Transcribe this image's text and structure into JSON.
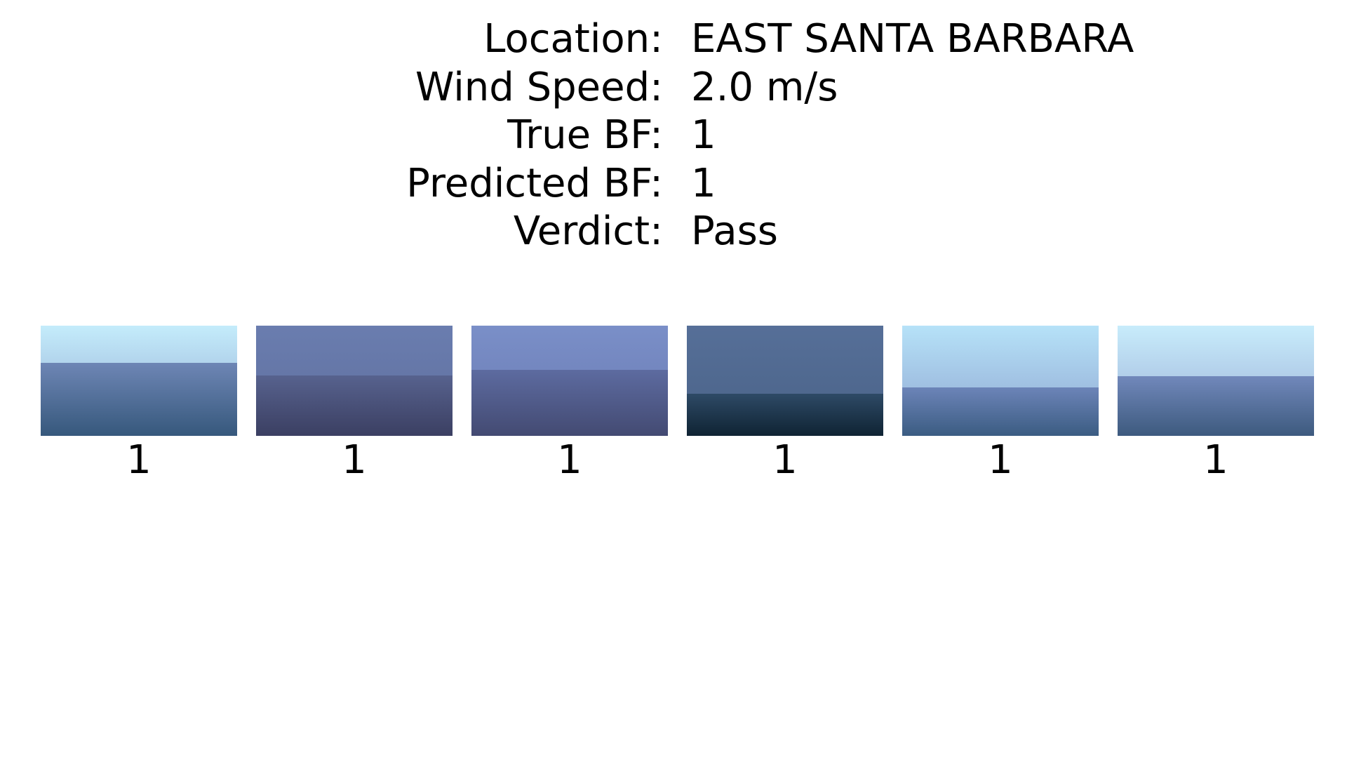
{
  "info": {
    "location_label": "Location:",
    "location_value": "EAST SANTA BARBARA",
    "wind_label": "Wind Speed:",
    "wind_value": "2.0 m/s",
    "true_bf_label": "True BF:",
    "true_bf_value": "1",
    "pred_bf_label": "Predicted BF:",
    "pred_bf_value": "1",
    "verdict_label": "Verdict:",
    "verdict_value": "Pass"
  },
  "images": [
    {
      "label": "1",
      "sky_top": "#c4ecfb",
      "sky_bottom": "#8fa6cf",
      "sea_top": "#6e86b5",
      "sea_bottom": "#36587c",
      "horizon": 0.34
    },
    {
      "label": "1",
      "sky_top": "#6a7daf",
      "sky_bottom": "#5f6f9e",
      "sea_top": "#57628e",
      "sea_bottom": "#3b3f62",
      "horizon": 0.45
    },
    {
      "label": "1",
      "sky_top": "#7a8fc8",
      "sky_bottom": "#6a7ab2",
      "sea_top": "#5d6ba0",
      "sea_bottom": "#434a72",
      "horizon": 0.4
    },
    {
      "label": "1",
      "sky_top": "#566f98",
      "sky_bottom": "#4a6388",
      "sea_top": "#2e4a66",
      "sea_bottom": "#0f2333",
      "horizon": 0.62
    },
    {
      "label": "1",
      "sky_top": "#b6e2f8",
      "sky_bottom": "#8ea4d0",
      "sea_top": "#6c84b8",
      "sea_bottom": "#3b5c82",
      "horizon": 0.56
    },
    {
      "label": "1",
      "sky_top": "#c8ecfb",
      "sky_bottom": "#98acd5",
      "sea_top": "#7188bb",
      "sea_bottom": "#3d5a7e",
      "horizon": 0.46
    }
  ]
}
